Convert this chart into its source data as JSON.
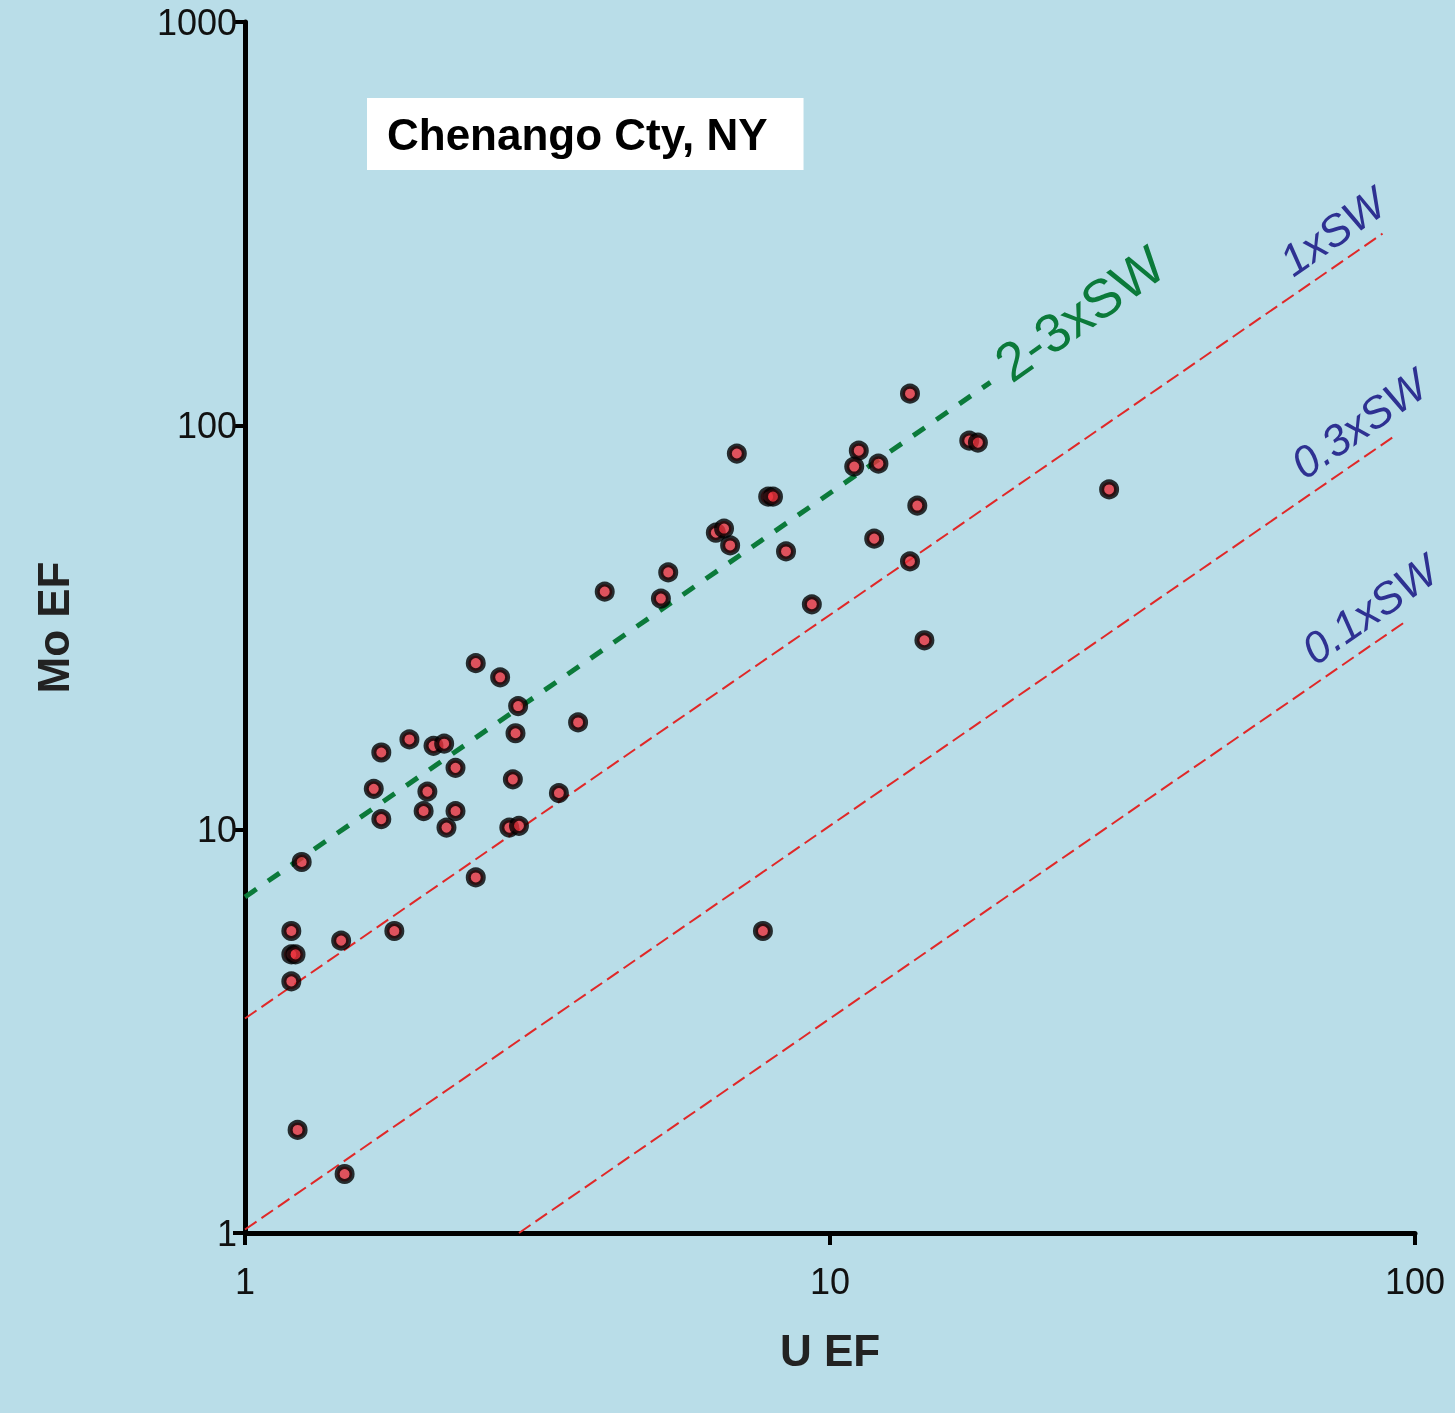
{
  "chart_data": {
    "type": "scatter",
    "title": "Chenango Cty, NY",
    "xlabel": "U EF",
    "ylabel": "Mo EF",
    "log": "xy",
    "grid": false,
    "legend": false,
    "marker": "circle",
    "xlim": [
      1,
      100
    ],
    "xticks": [
      1,
      10,
      100
    ],
    "ylim": [
      1,
      1000
    ],
    "yticks": [
      1,
      10,
      100,
      1000
    ],
    "series": [
      {
        "color": "#000000",
        "x": [
          1.2,
          1.2,
          1.22,
          1.2,
          1.23,
          1.48,
          1.46,
          1.25,
          1.8,
          1.66,
          1.71,
          1.71,
          1.91,
          2.02,
          2.05,
          2.1,
          2.19,
          2.29,
          2.29,
          2.21,
          2.48,
          2.48,
          2.73,
          2.93,
          2.9,
          2.87,
          2.83,
          2.94,
          3.44,
          3.71,
          4.12,
          5.14,
          5.29,
          6.38,
          6.59,
          6.75,
          6.93,
          7.84,
          7.99,
          8.41,
          7.68,
          9.31,
          11.2,
          11,
          12.1,
          11.9,
          13.7,
          14.1,
          13.7,
          14.5,
          17.3,
          17.9,
          30
        ],
        "values": [
          5.6,
          4.9,
          4.9,
          4.2,
          1.8,
          1.4,
          5.3,
          8.3,
          5.6,
          12.6,
          15.5,
          10.6,
          16.7,
          11.1,
          12.4,
          16.1,
          16.3,
          14.2,
          11.1,
          10.1,
          25.8,
          7.6,
          23.8,
          20.2,
          17.3,
          13.3,
          10.1,
          10.2,
          12.3,
          18.4,
          38.8,
          37.3,
          43.3,
          54.3,
          55.6,
          50.5,
          85.3,
          66.7,
          66.7,
          48.8,
          5.6,
          36.1,
          86.7,
          79.2,
          80.5,
          52.5,
          120,
          63.4,
          46.1,
          29.4,
          91.8,
          90.8,
          69.5
        ]
      },
      {
        "type": "line",
        "name": "2-3xSW",
        "color": "#0b7a3a",
        "line_style": "dashed",
        "marker": "none",
        "x": [
          1,
          18.8
        ],
        "values": [
          6.8,
          128
        ]
      },
      {
        "type": "line",
        "name": "1xSW",
        "color": "#e02828",
        "line_style": "dashed",
        "marker": "none",
        "x": [
          1,
          88
        ],
        "values": [
          3.4,
          299
        ]
      },
      {
        "type": "line",
        "name": "0.3xSW",
        "color": "#e02828",
        "line_style": "dashed",
        "marker": "none",
        "x": [
          1,
          92
        ],
        "values": [
          1.02,
          94
        ]
      },
      {
        "type": "line",
        "name": "0.1xSW",
        "color": "#e02828",
        "line_style": "dashed",
        "marker": "none",
        "x": [
          2.94,
          96
        ],
        "values": [
          1,
          32.6
        ]
      }
    ]
  }
}
